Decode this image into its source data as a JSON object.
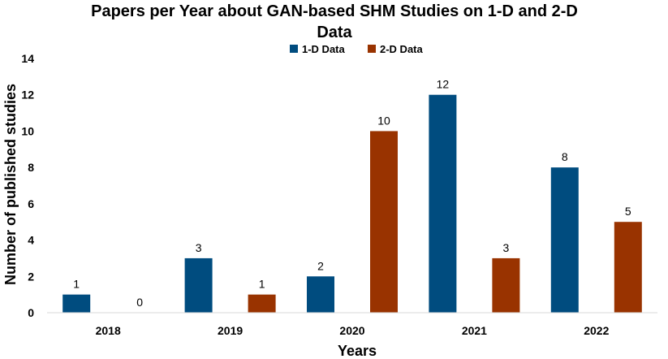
{
  "chart_data": {
    "type": "bar",
    "title_line1": "Papers per Year about GAN-based SHM Studies on 1-D and 2-D",
    "title_line2": "Data",
    "xlabel": "Years",
    "ylabel": "Number of published studies",
    "categories": [
      "2018",
      "2019",
      "2020",
      "2021",
      "2022"
    ],
    "series": [
      {
        "name": "1-D Data",
        "color": "#004C7F",
        "values": [
          1,
          3,
          2,
          12,
          8
        ]
      },
      {
        "name": "2-D Data",
        "color": "#993300",
        "values": [
          0,
          1,
          10,
          3,
          5
        ]
      }
    ],
    "ylim": [
      0,
      14
    ],
    "yticks": [
      0,
      2,
      4,
      6,
      8,
      10,
      12,
      14
    ],
    "grid": false,
    "legend_position": "top-center"
  }
}
